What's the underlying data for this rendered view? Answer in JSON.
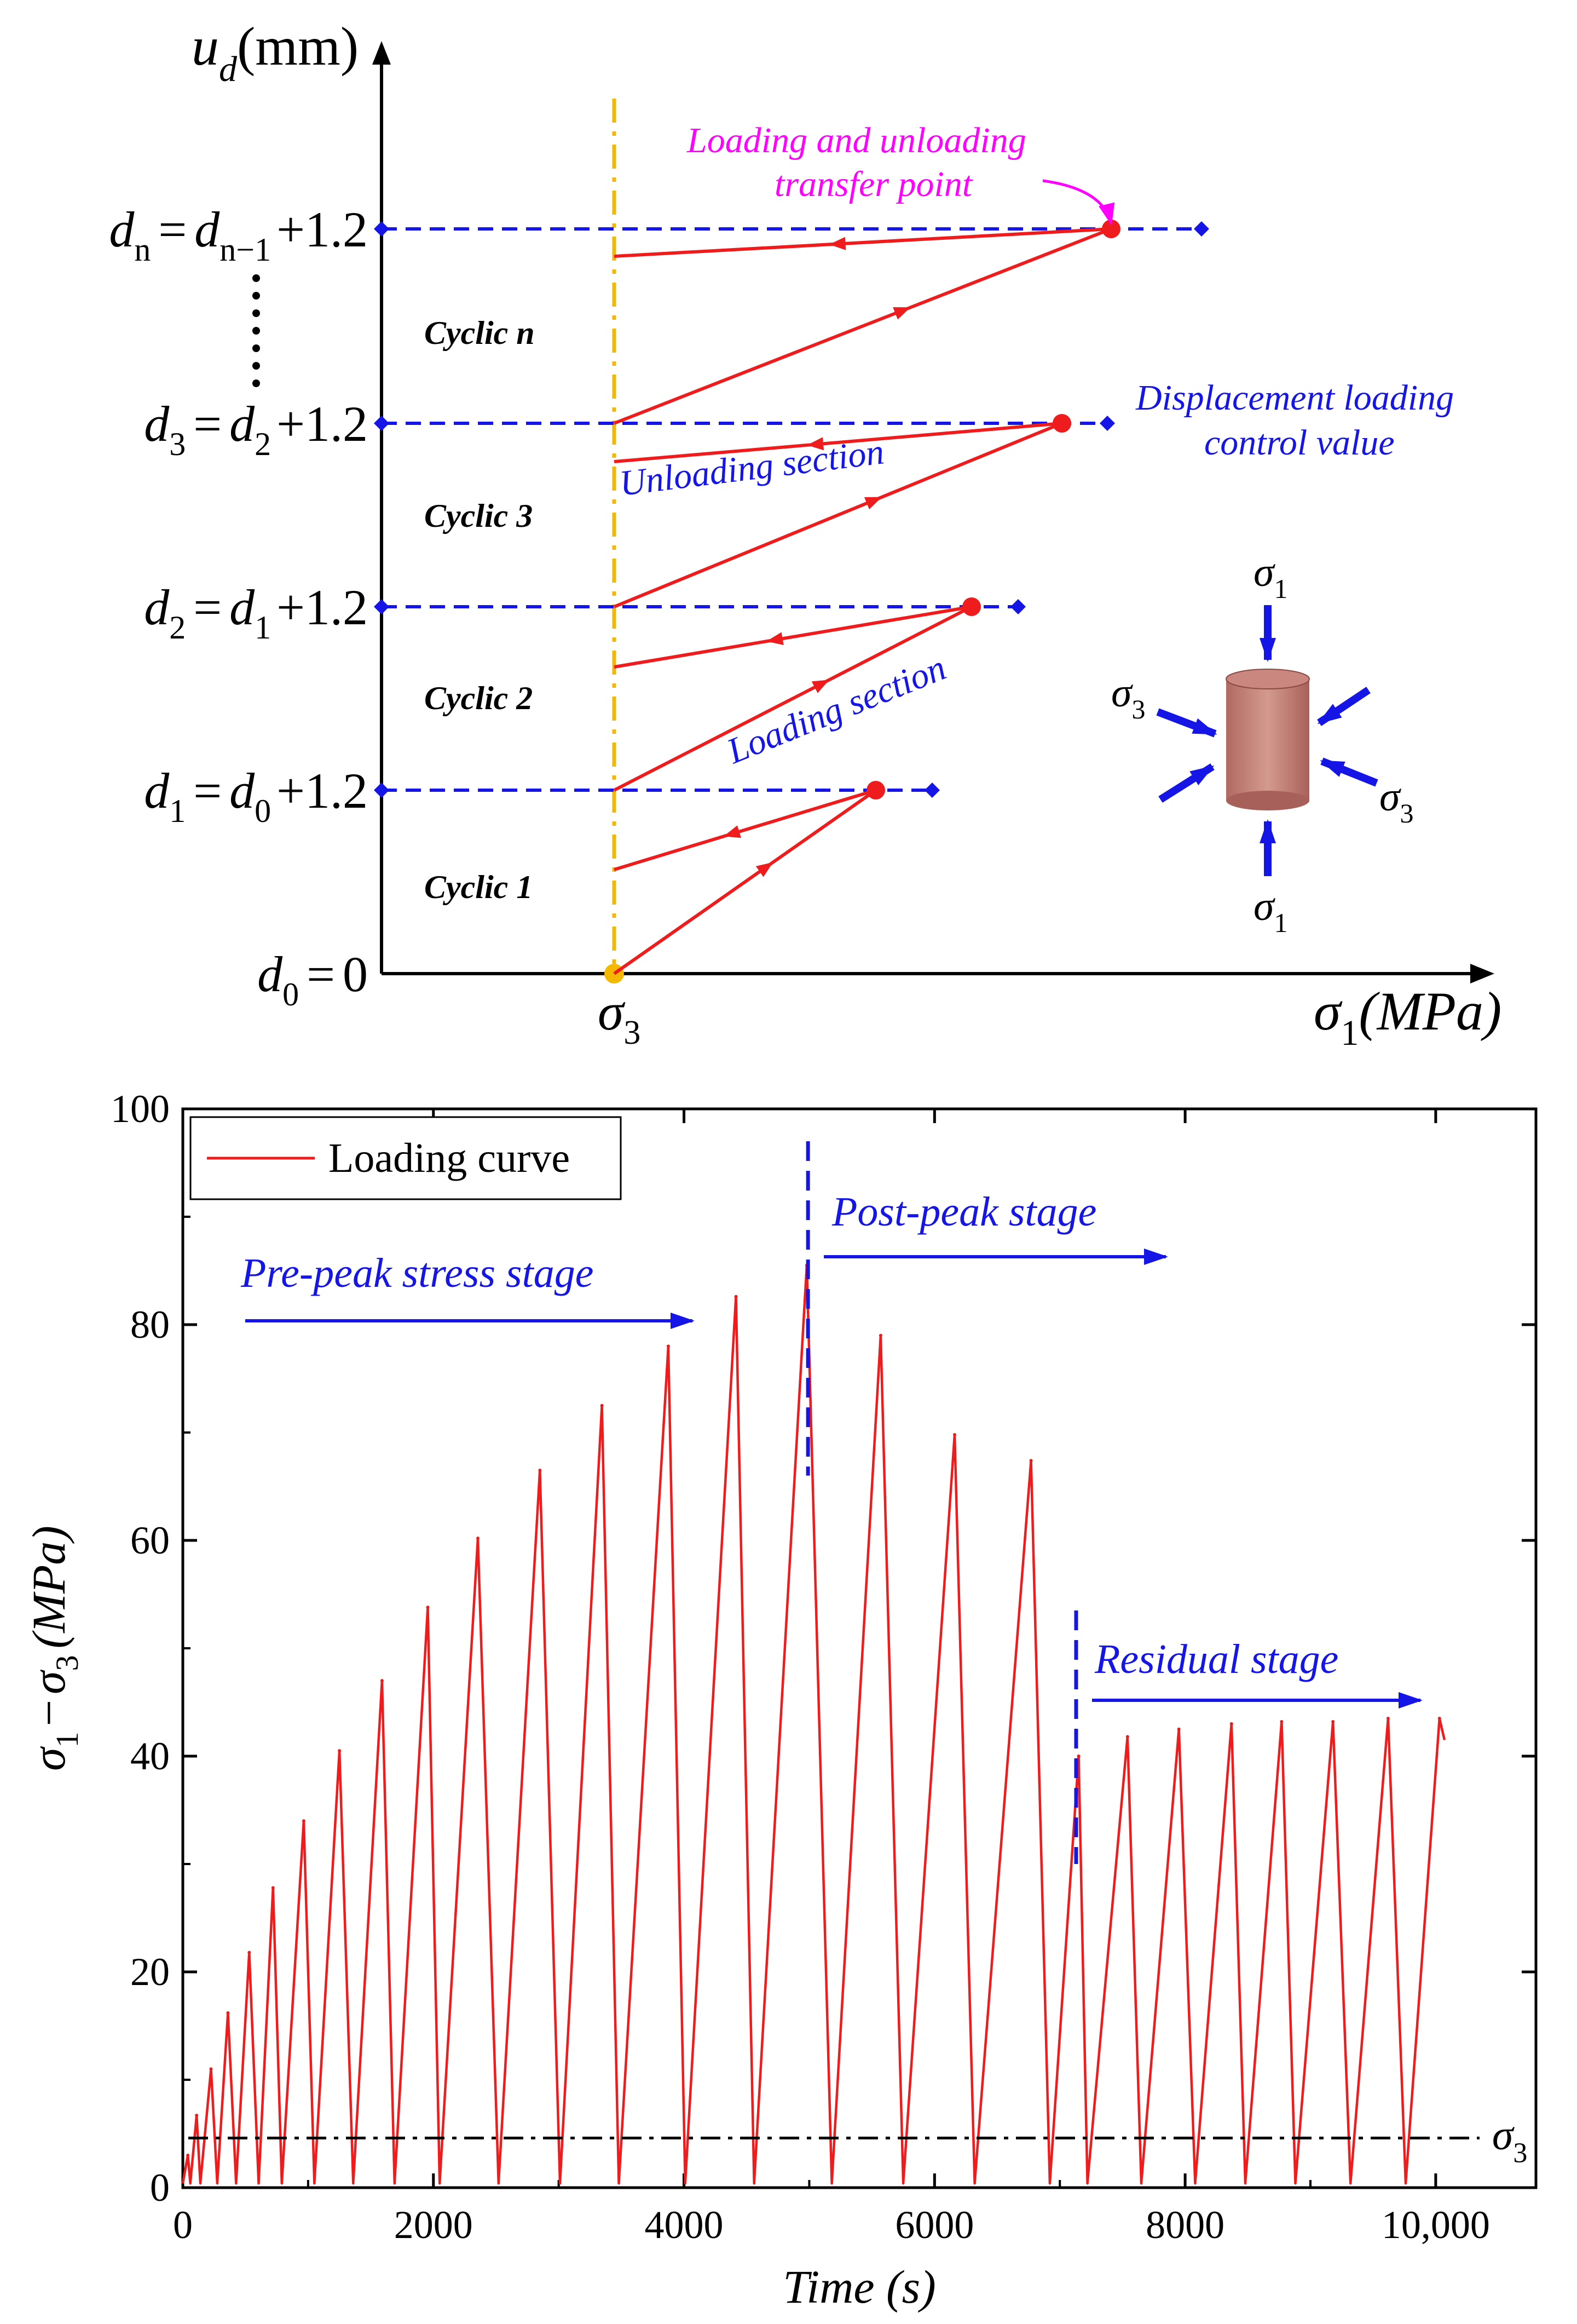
{
  "colors": {
    "red": "#ee1c1c",
    "blue": "#1515e6",
    "magenta": "#ff00ff",
    "orange": "#f5b800",
    "black": "#000000",
    "specimen": "#c9877f"
  },
  "top_diagram": {
    "y_axis_label_u": "u",
    "y_axis_label_sub": "d",
    "y_axis_label_unit": "(mm)",
    "x_axis_label_sigma": "σ",
    "x_axis_label_sub": "1",
    "x_axis_label_unit": "(MPa)",
    "sigma3_label": "σ",
    "sigma3_sub": "3",
    "levels": [
      {
        "left": "d",
        "left_sub": "0",
        "rhs": "= 0",
        "rhs_sub": "",
        "rhs_tail": ""
      },
      {
        "left": "d",
        "left_sub": "1",
        "rhs": "= d",
        "rhs_sub": "0",
        "rhs_tail": "+1.2"
      },
      {
        "left": "d",
        "left_sub": "2",
        "rhs": "= d",
        "rhs_sub": "1",
        "rhs_tail": "+1.2"
      },
      {
        "left": "d",
        "left_sub": "3",
        "rhs": "= d",
        "rhs_sub": "2",
        "rhs_tail": "+1.2"
      },
      {
        "left": "d",
        "left_sub": "n",
        "rhs": "= d",
        "rhs_sub": "n−1",
        "rhs_tail": "+1.2"
      }
    ],
    "cycle_labels": [
      "Cyclic 1",
      "Cyclic 2",
      "Cyclic 3",
      "Cyclic n"
    ],
    "annotations": {
      "transfer_line1": "Loading and unloading",
      "transfer_line2": "transfer point",
      "disp_line1": "Displacement loading",
      "disp_line2": "control value",
      "unloading_section": "Unloading section",
      "loading_section": "Loading section"
    },
    "specimen_labels": {
      "top_sigma": "σ",
      "top_sub": "1",
      "bottom_sigma": "σ",
      "bottom_sub": "1",
      "left_sigma": "σ",
      "left_sub": "3",
      "right_sigma": "σ",
      "right_sub": "3"
    }
  },
  "chart_data": {
    "type": "line",
    "title": "",
    "xlabel": "Time (s)",
    "ylabel": "σ1 − σ3 (MPa)",
    "ylabel_parts": {
      "sigma_a": "σ",
      "sub_a": "1",
      "minus": "−",
      "sigma_b": "σ",
      "sub_b": "3",
      "unit": "(MPa)"
    },
    "xlim": [
      0,
      10800
    ],
    "ylim": [
      0,
      100
    ],
    "xticks": [
      0,
      2000,
      4000,
      6000,
      8000,
      10000
    ],
    "xtick_labels": [
      "0",
      "2000",
      "4000",
      "6000",
      "8000",
      "10,000"
    ],
    "yticks": [
      0,
      20,
      40,
      60,
      80,
      100
    ],
    "ytick_labels": [
      "0",
      "20",
      "40",
      "60",
      "80",
      "100"
    ],
    "legend": {
      "label": "Loading curve",
      "placement": "top-left"
    },
    "sigma3_line": {
      "value": 4.6,
      "label": "σ",
      "label_sub": "3"
    },
    "stage_labels": {
      "pre_peak": "Pre-peak stress stage",
      "post_peak": "Post-peak stage",
      "residual": "Residual stage"
    },
    "stage_boundaries": {
      "peak_time": 4990,
      "residual_time": 7130
    },
    "cycles": [
      {
        "peak_t": 40,
        "peak": 3,
        "valley_t": 60
      },
      {
        "peak_t": 110,
        "peak": 6.7,
        "valley_t": 140
      },
      {
        "peak_t": 225,
        "peak": 11,
        "valley_t": 275
      },
      {
        "peak_t": 360,
        "peak": 16.2,
        "valley_t": 425
      },
      {
        "peak_t": 530,
        "peak": 21.8,
        "valley_t": 605
      },
      {
        "peak_t": 720,
        "peak": 27.8,
        "valley_t": 790
      },
      {
        "peak_t": 965,
        "peak": 34,
        "valley_t": 1050
      },
      {
        "peak_t": 1250,
        "peak": 40.5,
        "valley_t": 1360
      },
      {
        "peak_t": 1590,
        "peak": 47,
        "valley_t": 1690
      },
      {
        "peak_t": 1955,
        "peak": 53.8,
        "valley_t": 2050
      },
      {
        "peak_t": 2355,
        "peak": 60.2,
        "valley_t": 2520
      },
      {
        "peak_t": 2850,
        "peak": 66.5,
        "valley_t": 3010
      },
      {
        "peak_t": 3345,
        "peak": 72.5,
        "valley_t": 3480
      },
      {
        "peak_t": 3875,
        "peak": 78,
        "valley_t": 4010
      },
      {
        "peak_t": 4415,
        "peak": 82.6,
        "valley_t": 4560
      },
      {
        "peak_t": 4980,
        "peak": 85.5,
        "valley_t": 5180
      },
      {
        "peak_t": 5570,
        "peak": 79,
        "valley_t": 5750
      },
      {
        "peak_t": 6160,
        "peak": 69.8,
        "valley_t": 6320
      },
      {
        "peak_t": 6770,
        "peak": 67.4,
        "valley_t": 6920
      },
      {
        "peak_t": 7150,
        "peak": 40,
        "valley_t": 7220
      },
      {
        "peak_t": 7540,
        "peak": 41.8,
        "valley_t": 7650
      },
      {
        "peak_t": 7950,
        "peak": 42.5,
        "valley_t": 8080
      },
      {
        "peak_t": 8370,
        "peak": 43,
        "valley_t": 8480
      },
      {
        "peak_t": 8770,
        "peak": 43.2,
        "valley_t": 8880
      },
      {
        "peak_t": 9180,
        "peak": 43.2,
        "valley_t": 9320
      },
      {
        "peak_t": 9620,
        "peak": 43.5,
        "valley_t": 9760
      },
      {
        "peak_t": 10030,
        "peak": 43.5,
        "valley_t": null
      }
    ],
    "end_value": {
      "t": 10070,
      "value": 41.5
    }
  }
}
